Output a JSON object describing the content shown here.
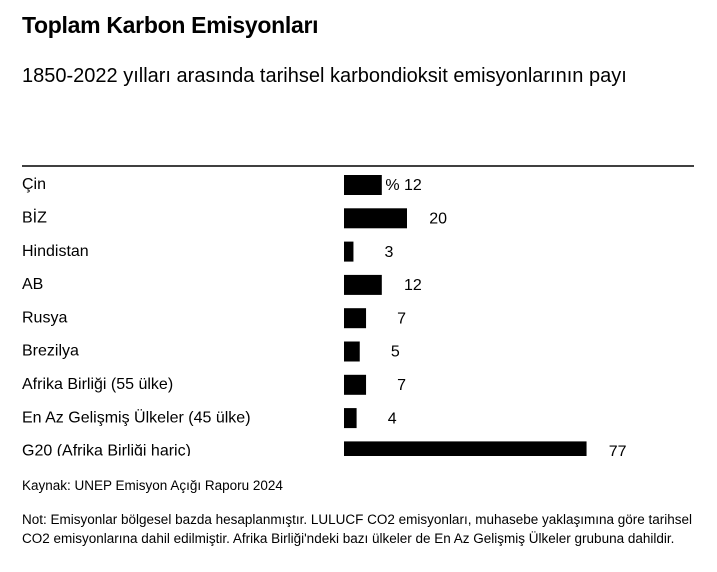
{
  "chart_data": {
    "type": "bar",
    "orientation": "horizontal",
    "title": "Toplam Karbon Emisyonları",
    "subtitle": "1850-2022 yılları arasında tarihsel karbondioksit emisyonlarının payı",
    "categories": [
      "Çin",
      "BİZ",
      "Hindistan",
      "AB",
      "Rusya",
      "Brezilya",
      "Afrika Birliği (55 ülke)",
      "En Az Gelişmiş Ülkeler (45 ülke)",
      "G20 (Afrika Birliği hariç)"
    ],
    "values": [
      12,
      20,
      3,
      12,
      7,
      5,
      7,
      4,
      77
    ],
    "value_labels": [
      "% 12",
      "20",
      "3",
      "12",
      "7",
      "5",
      "7",
      "4",
      "77"
    ],
    "color": "#000000",
    "source": "Kaynak: UNEP Emisyon Açığı Raporu 2024",
    "note": "Not: Emisyonlar bölgesel bazda hesaplanmıştır. LULUCF CO2 emisyonları, muhasebe yaklaşımına göre tarihsel CO2 emisyonlarına dahil edilmiştir. Afrika Birliği'ndeki bazı ülkeler de En Az Gelişmiş Ülkeler grubuna dahildir."
  }
}
